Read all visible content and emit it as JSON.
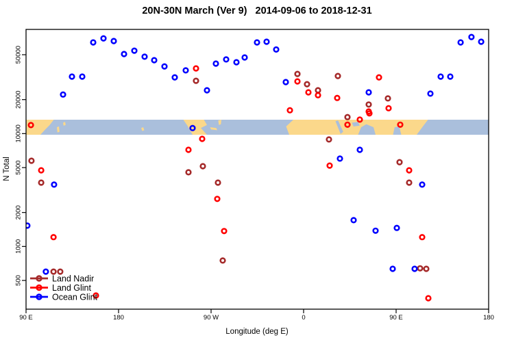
{
  "title": "20N-30N March (Ver 9)   2014-09-06 to 2018-12-31",
  "chart_data": {
    "type": "scatter",
    "xlabel": "Longitude (deg E)",
    "ylabel": "N Total",
    "x_axis": {
      "unit": "deg E",
      "range_deg": [
        90,
        540
      ],
      "ticks": [
        {
          "deg": 90,
          "label": "90 E"
        },
        {
          "deg": 180,
          "label": "180"
        },
        {
          "deg": 270,
          "label": "90 W"
        },
        {
          "deg": 360,
          "label": "0"
        },
        {
          "deg": 450,
          "label": "90 E"
        },
        {
          "deg": 540,
          "label": "180"
        }
      ]
    },
    "y_axis": {
      "scale": "log",
      "range": [
        280,
        84000
      ],
      "ticks": [
        500,
        1000,
        2000,
        5000,
        10000,
        20000,
        50000
      ]
    },
    "legend_position": "bottom-left",
    "series": [
      {
        "name": "Land Nadir",
        "color": "#A52A2A",
        "points": [
          [
            354,
            33800
          ],
          [
            363.3,
            27400
          ],
          [
            374,
            24200
          ],
          [
            393.3,
            32400
          ],
          [
            423.3,
            18100
          ],
          [
            442,
            20500
          ],
          [
            255.3,
            29400
          ],
          [
            402.7,
            14000
          ],
          [
            384.7,
            8870
          ],
          [
            95.3,
            5750
          ],
          [
            104.7,
            3680
          ],
          [
            262,
            5140
          ],
          [
            248,
            4540
          ],
          [
            276.7,
            3680
          ],
          [
            453.3,
            5580
          ],
          [
            462.7,
            3680
          ],
          [
            281.3,
            750
          ],
          [
            116.7,
            599
          ],
          [
            123.3,
            599
          ],
          [
            473.3,
            640
          ],
          [
            479.3,
            634
          ]
        ]
      },
      {
        "name": "Land Glint",
        "color": "#FF0000",
        "points": [
          [
            255.3,
            37800
          ],
          [
            354,
            29000
          ],
          [
            364.7,
            23200
          ],
          [
            374,
            21900
          ],
          [
            392.7,
            20700
          ],
          [
            433.3,
            31500
          ],
          [
            423.3,
            15700
          ],
          [
            442.7,
            16800
          ],
          [
            346.7,
            16100
          ],
          [
            94.7,
            11900
          ],
          [
            402.7,
            12000
          ],
          [
            414.7,
            13300
          ],
          [
            424,
            15100
          ],
          [
            454,
            12000
          ],
          [
            261.3,
            8980
          ],
          [
            104.7,
            4730
          ],
          [
            248,
            7190
          ],
          [
            385.3,
            5210
          ],
          [
            462.7,
            4730
          ],
          [
            276,
            2640
          ],
          [
            116.7,
            1210
          ],
          [
            282.7,
            1370
          ],
          [
            475.3,
            1210
          ],
          [
            158,
            368
          ],
          [
            481.3,
            348
          ]
        ]
      },
      {
        "name": "Ocean Glint",
        "color": "#0000FF",
        "points": [
          [
            155.3,
            64300
          ],
          [
            165.3,
            69800
          ],
          [
            175.3,
            66100
          ],
          [
            185.3,
            50700
          ],
          [
            195.3,
            54300
          ],
          [
            205.3,
            48000
          ],
          [
            214.7,
            44700
          ],
          [
            224.7,
            39400
          ],
          [
            234.7,
            31500
          ],
          [
            245.3,
            36300
          ],
          [
            266,
            24200
          ],
          [
            274.7,
            41700
          ],
          [
            284.7,
            45400
          ],
          [
            294.7,
            42900
          ],
          [
            302.7,
            47300
          ],
          [
            314.7,
            64300
          ],
          [
            324,
            65200
          ],
          [
            333.3,
            55600
          ],
          [
            342.7,
            28600
          ],
          [
            423.3,
            23200
          ],
          [
            483.3,
            22600
          ],
          [
            493.3,
            32000
          ],
          [
            502.7,
            32000
          ],
          [
            512.7,
            64300
          ],
          [
            523.3,
            71800
          ],
          [
            532.7,
            65200
          ],
          [
            134.7,
            32000
          ],
          [
            144.7,
            32000
          ],
          [
            126,
            22200
          ],
          [
            252,
            11200
          ],
          [
            117.3,
            3530
          ],
          [
            414.7,
            7190
          ],
          [
            395.3,
            6000
          ],
          [
            475.3,
            3530
          ],
          [
            91.3,
            1530
          ],
          [
            408.7,
            1710
          ],
          [
            430,
            1380
          ],
          [
            450.7,
            1460
          ],
          [
            109.3,
            599
          ],
          [
            446.7,
            634
          ],
          [
            468,
            634
          ]
        ]
      }
    ],
    "map_band": {
      "description": "world map strip of the 20N-30N latitude band",
      "n_top": 13280,
      "n_bottom": 9770,
      "ocean_color": "#AABFDC",
      "land_color": "#FBD88B",
      "land": [
        [
          [
            90,
            0
          ],
          [
            117,
            0
          ],
          [
            113,
            0.35
          ],
          [
            108,
            0.7
          ],
          [
            104,
            1
          ],
          [
            90,
            1
          ]
        ],
        [
          [
            120,
            0.5
          ],
          [
            122,
            0.45
          ],
          [
            122.5,
            0.8
          ],
          [
            120.5,
            0.85
          ]
        ],
        [
          [
            126,
            0.2
          ],
          [
            128,
            0.15
          ],
          [
            128.5,
            0.35
          ],
          [
            126.5,
            0.4
          ]
        ],
        [
          [
            202,
            0.55
          ],
          [
            204,
            0.5
          ],
          [
            205,
            0.7
          ],
          [
            203,
            0.75
          ]
        ],
        [
          [
            243,
            0
          ],
          [
            263,
            0
          ],
          [
            266,
            0.35
          ],
          [
            260,
            0.55
          ],
          [
            266,
            1
          ],
          [
            252,
            1
          ],
          [
            247,
            0.4
          ]
        ],
        [
          [
            269,
            0.5
          ],
          [
            275,
            0.55
          ],
          [
            276,
            0.7
          ],
          [
            270,
            0.65
          ]
        ],
        [
          [
            277,
            0.05
          ],
          [
            280,
            0
          ],
          [
            279.5,
            0.3
          ],
          [
            277.5,
            0.35
          ]
        ],
        [
          [
            350,
            0
          ],
          [
            481,
            0
          ],
          [
            476,
            0.45
          ],
          [
            470,
            1
          ],
          [
            346,
            1
          ],
          [
            343,
            0.45
          ]
        ]
      ],
      "water": [
        [
          [
            391,
            0.1
          ],
          [
            393.5,
            0.05
          ],
          [
            398.5,
            0.8
          ],
          [
            396,
            0.95
          ]
        ],
        [
          [
            407,
            0.2
          ],
          [
            413,
            0.15
          ],
          [
            414.5,
            0.4
          ],
          [
            408.5,
            0.45
          ]
        ],
        [
          [
            413,
            1
          ],
          [
            416,
            0.5
          ],
          [
            421,
            0.3
          ],
          [
            428,
            0.5
          ],
          [
            430,
            1
          ]
        ],
        [
          [
            447,
            1
          ],
          [
            448.5,
            0.5
          ],
          [
            453,
            0.45
          ],
          [
            455,
            1
          ]
        ]
      ]
    }
  }
}
